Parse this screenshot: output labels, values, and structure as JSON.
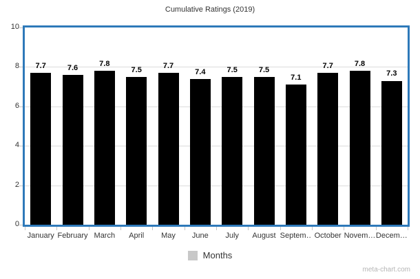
{
  "page": {
    "watermark": "meta-chart.com"
  },
  "legend": {
    "label": "Months"
  },
  "colors": {
    "bar": "#000000",
    "plot_border": "#2e79b9",
    "gridline": "#dcdcdc",
    "tick": "#c4c4c4",
    "axis_text": "#333333",
    "legend_swatch": "#c8c8c8",
    "watermark_text": "#b5b5b5",
    "background": "#ffffff"
  },
  "chart_data": {
    "type": "bar",
    "title": "Cumulative Ratings (2019)",
    "categories": [
      "January",
      "February",
      "March",
      "April",
      "May",
      "June",
      "July",
      "August",
      "September",
      "October",
      "November",
      "December"
    ],
    "x_display_labels": [
      "January",
      "February",
      "March",
      "April",
      "May",
      "June",
      "July",
      "August",
      "Septem…",
      "October",
      "Novem…",
      "Decem…"
    ],
    "values": [
      7.7,
      7.6,
      7.8,
      7.5,
      7.7,
      7.4,
      7.5,
      7.5,
      7.1,
      7.7,
      7.8,
      7.3
    ],
    "data_labels": true,
    "xlabel": "",
    "ylabel": "",
    "ylim": [
      0,
      10
    ],
    "yticks": [
      0,
      2,
      4,
      6,
      8,
      10
    ],
    "gridline_values": [
      2,
      4,
      6,
      8
    ],
    "grid": true,
    "bar_color": "#000000",
    "legend_entries": [
      "Months"
    ],
    "legend_position": "bottom",
    "watermark": "meta-chart.com"
  }
}
